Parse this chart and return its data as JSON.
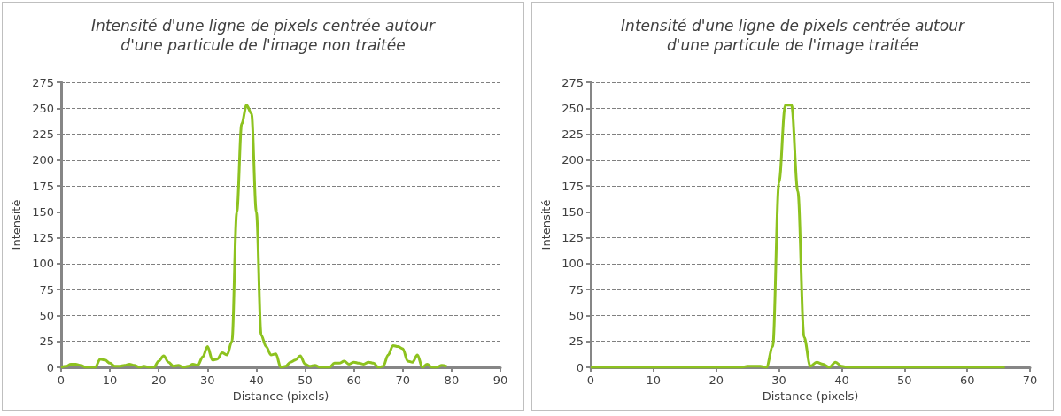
{
  "chart_data": [
    {
      "type": "line",
      "title": "Intensité d'une ligne de pixels centrée autour\nd'une particule de l'image non traitée",
      "xlabel": "Distance (pixels)",
      "ylabel": "Intensité",
      "color": "#8dc21f",
      "marker": "none",
      "grid": "y",
      "xlim": [
        0,
        90
      ],
      "xticks": [
        0,
        10,
        20,
        30,
        40,
        50,
        60,
        70,
        80,
        90
      ],
      "ylim": [
        0,
        275
      ],
      "yticks": [
        0,
        25,
        50,
        75,
        100,
        125,
        150,
        175,
        200,
        225,
        250,
        275
      ],
      "x": [
        0,
        1,
        2,
        3,
        4,
        5,
        6,
        7,
        8,
        9,
        10,
        11,
        12,
        13,
        14,
        15,
        16,
        17,
        18,
        19,
        20,
        21,
        22,
        23,
        24,
        25,
        26,
        27,
        28,
        29,
        30,
        31,
        32,
        33,
        34,
        35,
        36,
        37,
        38,
        39,
        40,
        41,
        42,
        43,
        44,
        45,
        46,
        47,
        48,
        49,
        50,
        51,
        52,
        53,
        54,
        55,
        56,
        57,
        58,
        59,
        60,
        61,
        62,
        63,
        64,
        65,
        66,
        67,
        68,
        69,
        70,
        71,
        72,
        73,
        74,
        75,
        76,
        77,
        78,
        79
      ],
      "values": [
        0,
        1,
        3,
        3,
        2,
        0,
        0,
        0,
        8,
        7,
        4,
        1,
        1,
        2,
        3,
        2,
        0,
        1,
        0,
        0,
        6,
        11,
        5,
        1,
        2,
        0,
        1,
        3,
        2,
        10,
        20,
        7,
        8,
        14,
        12,
        25,
        150,
        235,
        253,
        245,
        150,
        31,
        20,
        12,
        13,
        0,
        1,
        5,
        7,
        11,
        3,
        1,
        2,
        0,
        0,
        0,
        4,
        4,
        6,
        3,
        5,
        4,
        3,
        5,
        4,
        0,
        1,
        12,
        21,
        20,
        18,
        6,
        5,
        12,
        0,
        3,
        0,
        0,
        2,
        1
      ]
    },
    {
      "type": "line",
      "title": "Intensité d'une ligne de pixels centrée autour\nd'une particule de l'image traitée",
      "xlabel": "Distance (pixels)",
      "ylabel": "Intensité",
      "color": "#8dc21f",
      "marker": "none",
      "grid": "y",
      "xlim": [
        0,
        70
      ],
      "xticks": [
        0,
        10,
        20,
        30,
        40,
        50,
        60,
        70
      ],
      "ylim": [
        0,
        275
      ],
      "yticks": [
        0,
        25,
        50,
        75,
        100,
        125,
        150,
        175,
        200,
        225,
        250,
        275
      ],
      "x": [
        0,
        5,
        10,
        15,
        20,
        24,
        25,
        26,
        27,
        28,
        29,
        30,
        31,
        32,
        33,
        34,
        35,
        36,
        37,
        38,
        39,
        40,
        41,
        42,
        45,
        50,
        55,
        60,
        66
      ],
      "values": [
        0,
        0,
        0,
        0,
        0,
        0,
        1,
        1,
        1,
        0,
        20,
        178,
        253,
        253,
        170,
        29,
        1,
        5,
        3,
        0,
        5,
        1,
        0,
        0,
        0,
        0,
        0,
        0,
        0
      ]
    }
  ]
}
